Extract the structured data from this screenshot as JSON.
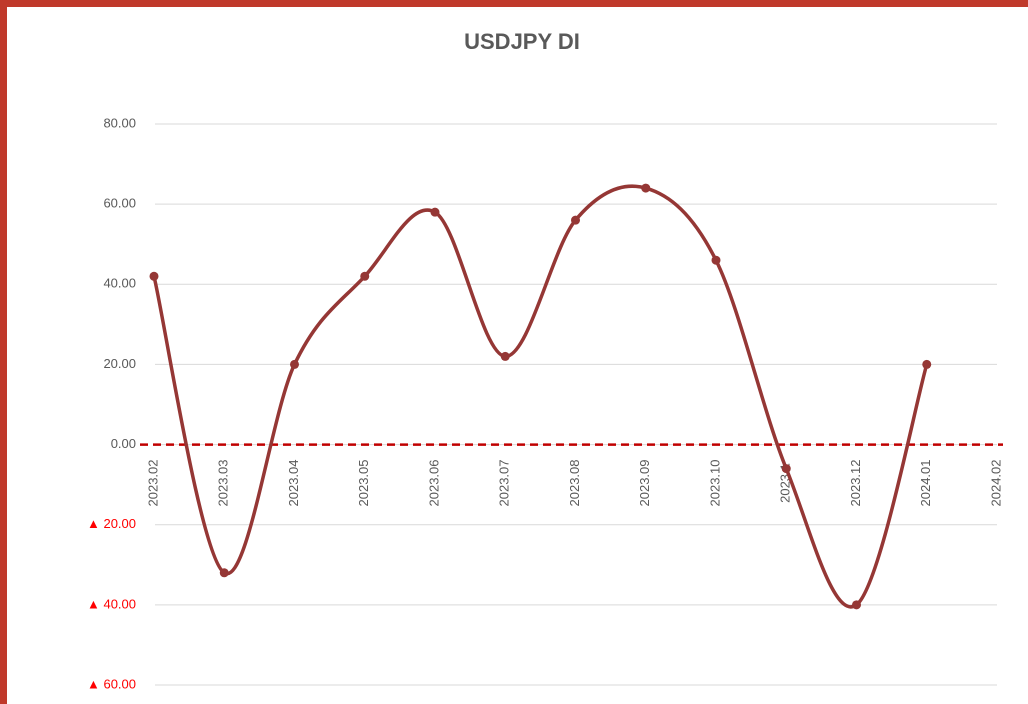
{
  "chart_data": {
    "type": "line",
    "title": "USDJPY DI",
    "categories": [
      "2023.02",
      "2023.03",
      "2023.04",
      "2023.05",
      "2023.06",
      "2023.07",
      "2023.08",
      "2023.09",
      "2023.10",
      "2023.1",
      "2023.12",
      "2024.01",
      "2024.02"
    ],
    "series": [
      {
        "name": "USDJPY DI",
        "color": "#953735",
        "values": [
          42,
          -32,
          20,
          42,
          58,
          22,
          56,
          64,
          46,
          -6,
          -40,
          20,
          null
        ]
      }
    ],
    "ylim": [
      -60,
      80
    ],
    "yticks": [
      {
        "value": 80,
        "label": "80.00"
      },
      {
        "value": 60,
        "label": "60.00"
      },
      {
        "value": 40,
        "label": "40.00"
      },
      {
        "value": 20,
        "label": "20.00"
      },
      {
        "value": 0,
        "label": "0.00"
      },
      {
        "value": -20,
        "label": "▲ 20.00"
      },
      {
        "value": -40,
        "label": "▲ 40.00"
      },
      {
        "value": -60,
        "label": "▲ 60.00"
      }
    ],
    "grid": true,
    "smooth": true,
    "zero_line_color": "#c00000",
    "negative_tick_color": "#ff0000"
  }
}
